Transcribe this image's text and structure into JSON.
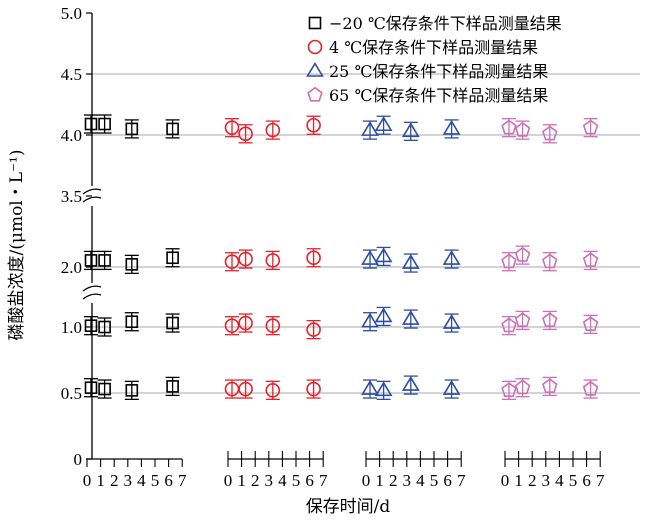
{
  "chart_data": {
    "type": "scatter",
    "title": "",
    "xlabel": "保存时间/d",
    "ylabel": "磷酸盐浓度/(μmol・L⁻¹)",
    "y_ticks": [
      "0",
      "0.5",
      "1.0",
      "2.0",
      "3.5",
      "4.0",
      "4.5",
      "5.0"
    ],
    "y_axis_breaks": [
      "between 1.0 and 2.0",
      "between 2.0 and 3.5"
    ],
    "grid": "horizontal lines at 0.5, 1.0, 2.0, 4.0, 4.5",
    "legend_position": "top-right",
    "day_ticks": [
      "0",
      "1",
      "2",
      "3",
      "4",
      "5",
      "6",
      "7"
    ],
    "days_sampled": [
      0,
      1,
      3,
      6
    ],
    "series": [
      {
        "name": "−20 ℃保存条件下样品测量结果",
        "marker": "square",
        "color": "#000000",
        "levels": [
          {
            "days": [
              0,
              1,
              3,
              6
            ],
            "values": [
              4.09,
              4.09,
              4.05,
              4.05
            ]
          },
          {
            "days": [
              0,
              1,
              3,
              6
            ],
            "values": [
              2.05,
              2.05,
              2.02,
              2.07
            ]
          },
          {
            "days": [
              0,
              1,
              3,
              6
            ],
            "values": [
              1.01,
              1.0,
              1.04,
              1.03
            ]
          },
          {
            "days": [
              0,
              1,
              3,
              6
            ],
            "values": [
              0.54,
              0.53,
              0.52,
              0.55
            ]
          }
        ]
      },
      {
        "name": "4 ℃保存条件下样品测量结果",
        "marker": "circle",
        "color": "#e8202a",
        "levels": [
          {
            "days": [
              0,
              1,
              3,
              6
            ],
            "values": [
              4.06,
              4.01,
              4.04,
              4.08
            ]
          },
          {
            "days": [
              0,
              1,
              3,
              6
            ],
            "values": [
              2.04,
              2.06,
              2.05,
              2.07
            ]
          },
          {
            "days": [
              0,
              1,
              3,
              6
            ],
            "values": [
              1.01,
              1.03,
              1.01,
              0.98
            ]
          },
          {
            "days": [
              0,
              1,
              3,
              6
            ],
            "values": [
              0.53,
              0.53,
              0.52,
              0.53
            ]
          }
        ]
      },
      {
        "name": "25 ℃保存条件下样品测量结果",
        "marker": "triangle",
        "color": "#2b4ea2",
        "levels": [
          {
            "days": [
              0,
              1,
              3,
              6
            ],
            "values": [
              4.04,
              4.08,
              4.03,
              4.05
            ]
          },
          {
            "days": [
              0,
              1,
              3,
              6
            ],
            "values": [
              2.06,
              2.08,
              2.03,
              2.06
            ]
          },
          {
            "days": [
              0,
              1,
              3,
              6
            ],
            "values": [
              1.04,
              1.08,
              1.06,
              1.03
            ]
          },
          {
            "days": [
              0,
              1,
              3,
              6
            ],
            "values": [
              0.53,
              0.52,
              0.56,
              0.53
            ]
          }
        ]
      },
      {
        "name": "65 ℃保存条件下样品测量结果",
        "marker": "pentagon",
        "color": "#cc6fb8",
        "levels": [
          {
            "days": [
              0,
              1,
              3,
              6
            ],
            "values": [
              4.06,
              4.04,
              4.01,
              4.06
            ]
          },
          {
            "days": [
              0,
              1,
              3,
              6
            ],
            "values": [
              2.04,
              2.09,
              2.04,
              2.05
            ]
          },
          {
            "days": [
              0,
              1,
              3,
              6
            ],
            "values": [
              1.01,
              1.05,
              1.05,
              1.02
            ]
          },
          {
            "days": [
              0,
              1,
              3,
              6
            ],
            "values": [
              0.52,
              0.54,
              0.55,
              0.53
            ]
          }
        ]
      }
    ]
  }
}
